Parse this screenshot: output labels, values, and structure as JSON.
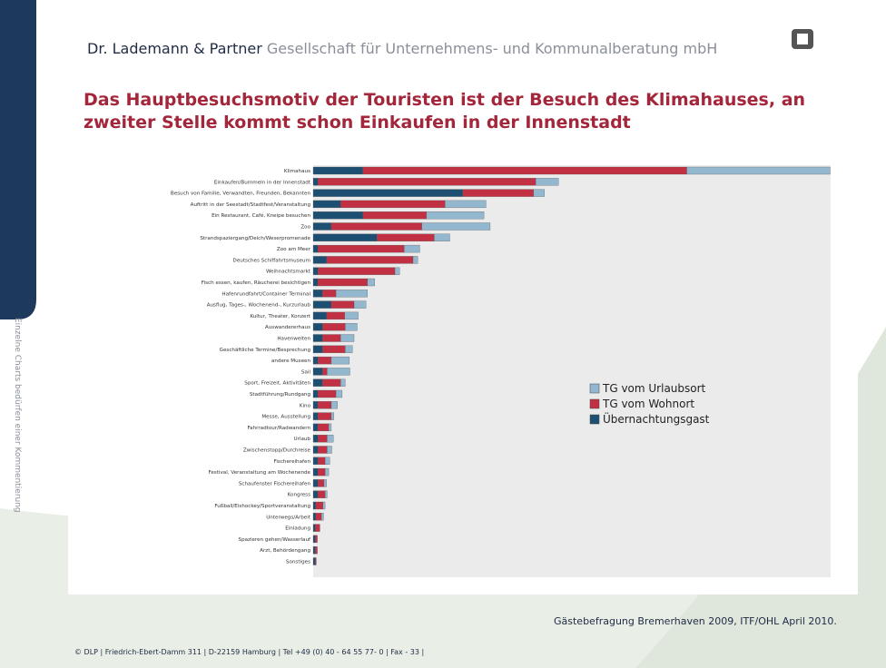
{
  "header": {
    "firm": "Dr. Lademann & Partner",
    "subtitle": "Gesellschaft für Unternehmens- und Kommunalberatung mbH"
  },
  "title": "Das Hauptbesuchsmotiv der Touristen ist der Besuch des Klimahauses, an zweiter Stelle kommt schon Einkaufen in der Innenstadt",
  "side_note": "Einzelne Charts bedürfen einer Kommentierung",
  "chart_data": {
    "type": "hbar_stacked",
    "categories": [
      "Klimahaus",
      "Einkaufen/Bummeln in der Innenstadt",
      "Besuch von Familie, Verwandten, Freunden, Bekannten",
      "Auftritt in der Seestadt/Stadtfest/Veranstaltung",
      "Ein Restaurant, Café, Kneipe besuchen",
      "Zoo",
      "Strandspaziergang/Deich/Weserpromenade",
      "Zoo am Meer",
      "Deutsches Schiffahrtsmuseum",
      "Weihnachtsmarkt",
      "Fisch essen, kaufen, Räucherei besichtigen",
      "Hafenrundfahrt/Container Terminal",
      "Ausflug, Tages-, Wochenend-, Kurzurlaub",
      "Kultur, Theater, Konzert",
      "Auswandererhaus",
      "Havenwelten",
      "Geschäftliche Termine/Besprechung",
      "andere Museen",
      "Sail",
      "Sport, Freizeit, Aktivitäten",
      "Stadtführung/Rundgang",
      "Kino",
      "Messe, Ausstellung",
      "Fahrradtour/Radwandern",
      "Urlaub",
      "Zwischenstopp/Durchreise",
      "Fischereihafen",
      "Festival, Veranstaltung am Wochenende",
      "Schaufenster Fischereihafen",
      "Kongress",
      "Fußball/Eishockey/Sportveranstaltung",
      "Unterwegs/Arbeit",
      "Einladung",
      "Spazieren gehen/Wasserlauf",
      "Arzt, Behördengang",
      "Sonstiges"
    ],
    "xlim": [
      0,
      100
    ],
    "series": [
      {
        "name": "Übernachtungsgast",
        "color": "#1d4f73",
        "values": [
          9.6,
          0.9,
          28.9,
          5.3,
          9.6,
          3.5,
          12.3,
          0.9,
          2.6,
          0.9,
          0.9,
          1.8,
          3.5,
          2.6,
          1.8,
          1.8,
          1.8,
          0.9,
          1.8,
          1.8,
          0.9,
          0.9,
          0.9,
          0.9,
          0.9,
          0.9,
          0.9,
          0.9,
          0.9,
          0.9,
          0.5,
          0.5,
          0.4,
          0.4,
          0.4,
          0.4
        ]
      },
      {
        "name": "TG vom Wohnort",
        "color": "#c23043",
        "values": [
          62.6,
          42.1,
          13.7,
          20.2,
          12.3,
          17.5,
          11.1,
          16.7,
          16.7,
          14.9,
          9.6,
          2.6,
          4.4,
          3.5,
          4.4,
          3.5,
          4.4,
          2.6,
          0.9,
          3.5,
          3.5,
          2.6,
          2.6,
          2.1,
          1.8,
          1.8,
          1.4,
          1.4,
          1.2,
          1.4,
          1.4,
          1.1,
          0.9,
          0.4,
          0.4,
          0.2
        ]
      },
      {
        "name": "TG vom Urlaubsort",
        "color": "#93b7cf",
        "values": [
          27.7,
          4.4,
          2.1,
          7.9,
          11.1,
          13.2,
          3.0,
          3.0,
          0.9,
          0.9,
          1.4,
          6.1,
          2.3,
          2.6,
          2.3,
          2.6,
          1.4,
          3.5,
          4.4,
          0.9,
          1.2,
          1.2,
          0.5,
          0.5,
          1.2,
          0.9,
          0.9,
          0.7,
          0.5,
          0.4,
          0.4,
          0.4,
          0,
          0,
          0,
          0
        ]
      }
    ],
    "legend": "right"
  },
  "source": "Gästebefragung Bremerhaven 2009, ITF/OHL April 2010.",
  "footer": "© DLP | Friedrich-Ebert-Damm 311 | D-22159 Hamburg | Tel +49 (0) 40 - 64 55 77- 0 | Fax - 33 |"
}
